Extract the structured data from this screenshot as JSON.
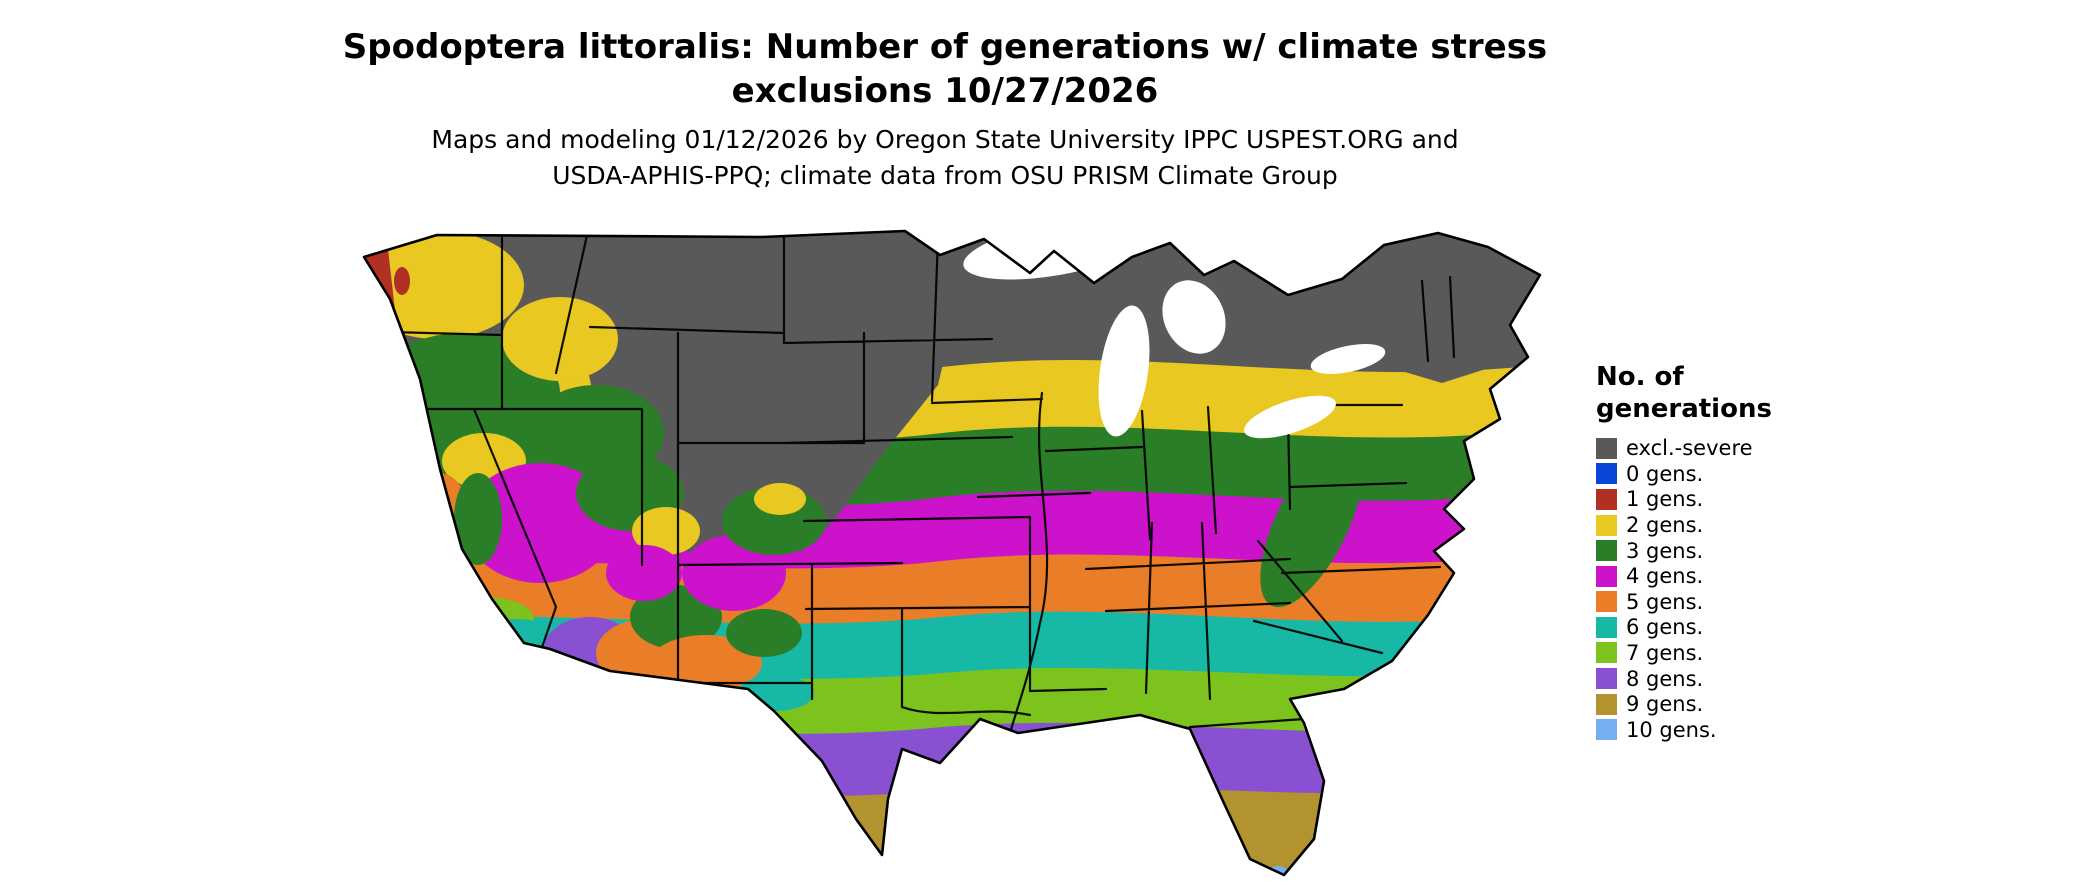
{
  "figure": {
    "title_lines": [
      "Spodoptera littoralis: Number of generations w/ climate stress",
      "exclusions 10/27/2026"
    ],
    "subtitle_lines": [
      "Maps and modeling 01/12/2026 by Oregon State University IPPC USPEST.ORG and",
      "USDA-APHIS-PPQ; climate data from OSU PRISM Climate Group"
    ]
  },
  "map": {
    "region": "Contiguous United States generations raster map"
  },
  "legend": {
    "title": "No. of generations",
    "items": [
      {
        "label": "excl.-severe",
        "color": "#595959"
      },
      {
        "label": "0 gens.",
        "color": "#0846d8"
      },
      {
        "label": "1 gens.",
        "color": "#b03124"
      },
      {
        "label": "2 gens.",
        "color": "#e8c821"
      },
      {
        "label": "3 gens.",
        "color": "#2b7e28"
      },
      {
        "label": "4 gens.",
        "color": "#cc13cb"
      },
      {
        "label": "5 gens.",
        "color": "#ea7d28"
      },
      {
        "label": "6 gens.",
        "color": "#17b8a6"
      },
      {
        "label": "7 gens.",
        "color": "#7cc31e"
      },
      {
        "label": "8 gens.",
        "color": "#8a50d2"
      },
      {
        "label": "9 gens.",
        "color": "#b39230"
      },
      {
        "label": "10 gens.",
        "color": "#74b0f0"
      }
    ]
  }
}
